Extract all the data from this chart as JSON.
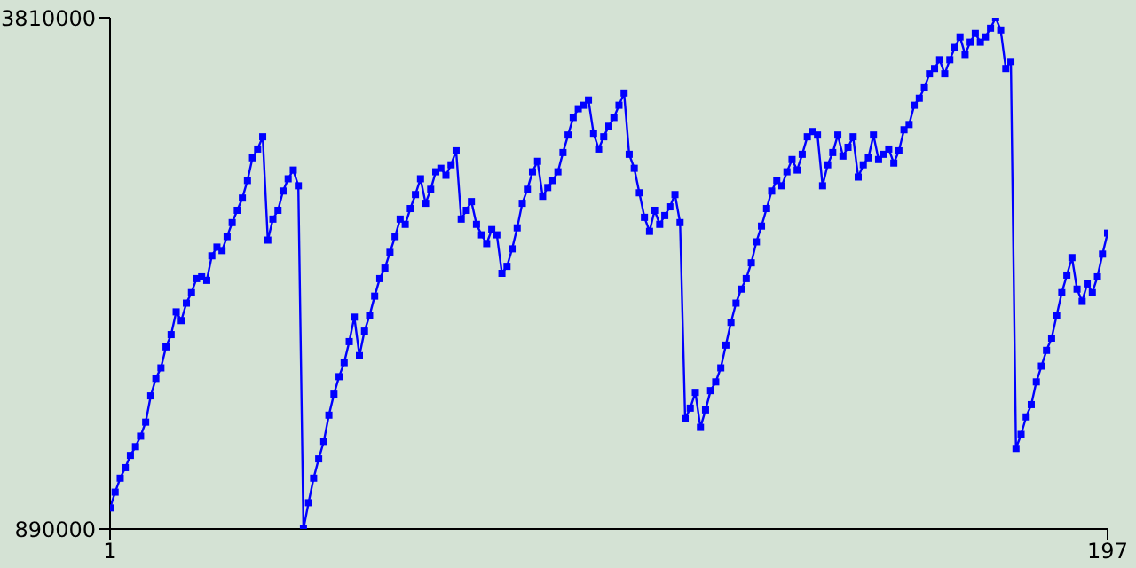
{
  "chart_data": {
    "type": "line",
    "color": "#0000ff",
    "marker": "square",
    "line_style": "solid",
    "xlim": [
      1,
      197
    ],
    "xticks": [
      1,
      197
    ],
    "ylim": [
      890000,
      3810000
    ],
    "yticks": [
      890000,
      3810000
    ],
    "x": [
      1,
      2,
      3,
      4,
      5,
      6,
      7,
      8,
      9,
      10,
      11,
      12,
      13,
      14,
      15,
      16,
      17,
      18,
      19,
      20,
      21,
      22,
      23,
      24,
      25,
      26,
      27,
      28,
      29,
      30,
      31,
      32,
      33,
      34,
      35,
      36,
      37,
      38,
      39,
      40,
      41,
      42,
      43,
      44,
      45,
      46,
      47,
      48,
      49,
      50,
      51,
      52,
      53,
      54,
      55,
      56,
      57,
      58,
      59,
      60,
      61,
      62,
      63,
      64,
      65,
      66,
      67,
      68,
      69,
      70,
      71,
      72,
      73,
      74,
      75,
      76,
      77,
      78,
      79,
      80,
      81,
      82,
      83,
      84,
      85,
      86,
      87,
      88,
      89,
      90,
      91,
      92,
      93,
      94,
      95,
      96,
      97,
      98,
      99,
      100,
      101,
      102,
      103,
      104,
      105,
      106,
      107,
      108,
      109,
      110,
      111,
      112,
      113,
      114,
      115,
      116,
      117,
      118,
      119,
      120,
      121,
      122,
      123,
      124,
      125,
      126,
      127,
      128,
      129,
      130,
      131,
      132,
      133,
      134,
      135,
      136,
      137,
      138,
      139,
      140,
      141,
      142,
      143,
      144,
      145,
      146,
      147,
      148,
      149,
      150,
      151,
      152,
      153,
      154,
      155,
      156,
      157,
      158,
      159,
      160,
      161,
      162,
      163,
      164,
      165,
      166,
      167,
      168,
      169,
      170,
      171,
      172,
      173,
      174,
      175,
      176,
      177,
      178,
      179,
      180,
      181,
      182,
      183,
      184,
      185,
      186,
      187,
      188,
      189,
      190,
      191,
      192,
      193,
      194,
      195,
      196,
      197
    ],
    "values": [
      1010000,
      1100000,
      1180000,
      1240000,
      1310000,
      1360000,
      1420000,
      1500000,
      1650000,
      1750000,
      1810000,
      1930000,
      2000000,
      2130000,
      2080000,
      2180000,
      2240000,
      2320000,
      2330000,
      2310000,
      2450000,
      2500000,
      2480000,
      2560000,
      2640000,
      2710000,
      2780000,
      2880000,
      3010000,
      3060000,
      3130000,
      2540000,
      2660000,
      2710000,
      2820000,
      2890000,
      2940000,
      2850000,
      890000,
      1040000,
      1180000,
      1290000,
      1390000,
      1540000,
      1660000,
      1760000,
      1840000,
      1960000,
      2100000,
      1880000,
      2020000,
      2110000,
      2220000,
      2320000,
      2380000,
      2470000,
      2560000,
      2660000,
      2630000,
      2720000,
      2800000,
      2890000,
      2750000,
      2830000,
      2930000,
      2950000,
      2910000,
      2970000,
      3050000,
      2660000,
      2710000,
      2760000,
      2630000,
      2570000,
      2520000,
      2600000,
      2570000,
      2350000,
      2390000,
      2490000,
      2610000,
      2750000,
      2830000,
      2930000,
      2990000,
      2790000,
      2840000,
      2880000,
      2930000,
      3040000,
      3140000,
      3240000,
      3290000,
      3310000,
      3340000,
      3150000,
      3060000,
      3130000,
      3190000,
      3240000,
      3310000,
      3380000,
      3030000,
      2950000,
      2810000,
      2670000,
      2590000,
      2710000,
      2630000,
      2680000,
      2730000,
      2800000,
      2640000,
      1520000,
      1580000,
      1670000,
      1470000,
      1570000,
      1680000,
      1730000,
      1810000,
      1940000,
      2070000,
      2180000,
      2260000,
      2320000,
      2410000,
      2530000,
      2620000,
      2720000,
      2820000,
      2880000,
      2850000,
      2930000,
      3000000,
      2940000,
      3030000,
      3130000,
      3160000,
      3140000,
      2850000,
      2970000,
      3040000,
      3140000,
      3020000,
      3070000,
      3130000,
      2900000,
      2970000,
      3010000,
      3140000,
      3000000,
      3030000,
      3060000,
      2980000,
      3050000,
      3170000,
      3200000,
      3310000,
      3350000,
      3410000,
      3490000,
      3520000,
      3570000,
      3490000,
      3570000,
      3640000,
      3700000,
      3600000,
      3670000,
      3720000,
      3670000,
      3700000,
      3750000,
      3810000,
      3740000,
      3520000,
      3560000,
      1350000,
      1430000,
      1530000,
      1600000,
      1730000,
      1820000,
      1910000,
      1980000,
      2110000,
      2240000,
      2340000,
      2440000,
      2260000,
      2190000,
      2290000,
      2240000,
      2330000,
      2460000,
      2580000
    ]
  }
}
